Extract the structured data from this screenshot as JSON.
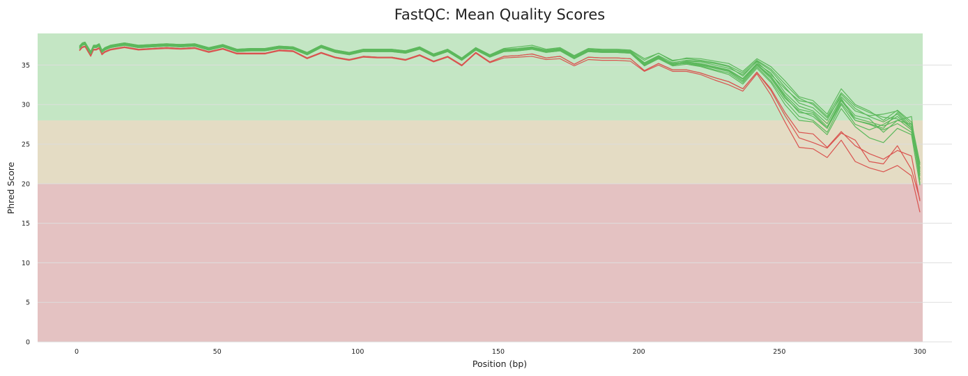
{
  "chart_data": {
    "type": "line",
    "title": "FastQC: Mean Quality Scores",
    "xlabel": "Position (bp)",
    "ylabel": "Phred Score",
    "xlim": [
      -15,
      300
    ],
    "ylim": [
      0,
      39
    ],
    "x_ticks": [
      "0",
      "50",
      "100",
      "150",
      "200",
      "250",
      "300"
    ],
    "y_ticks": [
      "0",
      "5",
      "10",
      "15",
      "20",
      "25",
      "30",
      "35"
    ],
    "grid": true,
    "legend": "none",
    "bands": [
      {
        "from": 28,
        "to": 39,
        "color": "#c4e6c4"
      },
      {
        "from": 20,
        "to": 28,
        "color": "#e4dcc4"
      },
      {
        "from": 0,
        "to": 20,
        "color": "#e4c2c2"
      }
    ],
    "x": [
      1,
      2,
      3,
      4,
      5,
      6,
      7,
      8,
      9,
      10,
      12,
      17,
      22,
      27,
      32,
      37,
      42,
      47,
      52,
      57,
      62,
      67,
      72,
      77,
      82,
      87,
      92,
      97,
      102,
      107,
      112,
      117,
      122,
      127,
      132,
      137,
      142,
      147,
      152,
      157,
      162,
      167,
      172,
      177,
      182,
      187,
      192,
      197,
      202,
      207,
      212,
      217,
      222,
      227,
      232,
      237,
      242,
      247,
      252,
      257,
      262,
      267,
      272,
      277,
      282,
      287,
      292,
      297,
      300
    ],
    "base": [
      37.2,
      37.6,
      37.7,
      37.1,
      36.5,
      37.3,
      37.3,
      37.5,
      36.7,
      37.0,
      37.3,
      37.6,
      37.3,
      37.4,
      37.5,
      37.4,
      37.5,
      37.0,
      37.4,
      36.8,
      36.9,
      36.9,
      37.2,
      37.1,
      36.4,
      37.3,
      36.7,
      36.4,
      36.8,
      36.8,
      36.8,
      36.6,
      37.1,
      36.2,
      36.8,
      35.7,
      37.0,
      36.1,
      36.8,
      36.9,
      37.1,
      36.7,
      36.9,
      35.9,
      36.8,
      36.7,
      36.7,
      36.6,
      35.1,
      36.0,
      35.0,
      35.3,
      35.0,
      34.6,
      34.2,
      33.0,
      35.0,
      33.5,
      31.0,
      29.0,
      28.8,
      27.0,
      30.5,
      28.3,
      27.8,
      27.3,
      28.0,
      27.5,
      21.5
    ],
    "series": [
      {
        "status": "pass",
        "values": [
          37.2,
          37.6,
          37.7,
          37.1,
          36.5,
          37.3,
          37.3,
          37.5,
          36.7,
          37.0,
          37.3,
          37.6,
          37.3,
          37.4,
          37.5,
          37.4,
          37.5,
          37.0,
          37.4,
          36.8,
          36.9,
          36.9,
          37.2,
          37.1,
          36.4,
          37.3,
          36.7,
          36.4,
          36.8,
          36.8,
          36.8,
          36.6,
          37.1,
          36.2,
          36.8,
          35.7,
          37.0,
          36.1,
          36.8,
          36.9,
          37.1,
          36.7,
          36.9,
          35.9,
          36.8,
          36.7,
          36.7,
          36.6,
          35.1,
          36.0,
          35.0,
          35.3,
          35.0,
          34.6,
          34.2,
          33.0,
          35.0,
          33.5,
          31.0,
          29.0,
          28.8,
          27.0,
          30.5,
          28.3,
          27.8,
          27.3,
          28.0,
          27.5,
          21.5
        ]
      },
      {
        "status": "pass",
        "values": [
          37.3,
          37.7,
          37.8,
          37.2,
          36.6,
          37.4,
          37.4,
          37.6,
          36.8,
          37.1,
          37.4,
          37.7,
          37.4,
          37.5,
          37.6,
          37.5,
          37.6,
          37.1,
          37.5,
          36.9,
          37.0,
          37.0,
          37.3,
          37.2,
          36.5,
          37.4,
          36.8,
          36.5,
          36.9,
          36.9,
          36.9,
          36.7,
          37.2,
          36.3,
          36.9,
          35.8,
          37.1,
          36.2,
          36.9,
          37.0,
          37.2,
          36.8,
          37.0,
          36.0,
          36.9,
          36.8,
          36.8,
          36.7,
          35.3,
          36.2,
          35.3,
          35.6,
          35.5,
          35.2,
          34.8,
          33.6,
          35.5,
          34.3,
          32.2,
          30.2,
          29.6,
          28.0,
          31.3,
          29.5,
          28.5,
          27.8,
          28.8,
          27.0,
          22.0
        ]
      },
      {
        "status": "pass",
        "values": [
          37.4,
          37.8,
          37.9,
          37.3,
          36.7,
          37.5,
          37.5,
          37.7,
          36.9,
          37.2,
          37.5,
          37.8,
          37.5,
          37.6,
          37.7,
          37.6,
          37.7,
          37.2,
          37.6,
          37.0,
          37.1,
          37.1,
          37.4,
          37.3,
          36.6,
          37.5,
          36.9,
          36.6,
          37.0,
          37.0,
          37.0,
          36.8,
          37.3,
          36.4,
          37.0,
          35.9,
          37.2,
          36.3,
          37.0,
          37.1,
          37.3,
          36.9,
          37.1,
          36.1,
          37.0,
          36.9,
          36.9,
          36.8,
          35.6,
          36.5,
          35.5,
          35.9,
          35.8,
          35.5,
          35.2,
          34.2,
          35.8,
          34.8,
          33.0,
          31.0,
          30.5,
          28.8,
          32.0,
          30.0,
          29.2,
          28.0,
          29.3,
          27.8,
          22.6
        ]
      },
      {
        "status": "pass",
        "values": [
          37.2,
          37.6,
          37.7,
          37.1,
          36.5,
          37.3,
          37.3,
          37.5,
          36.7,
          37.0,
          37.3,
          37.6,
          37.3,
          37.4,
          37.5,
          37.4,
          37.5,
          37.0,
          37.4,
          36.8,
          36.9,
          36.9,
          37.2,
          37.1,
          36.4,
          37.3,
          36.7,
          36.4,
          36.8,
          36.8,
          36.8,
          36.6,
          37.1,
          36.2,
          36.8,
          35.7,
          37.0,
          36.1,
          36.8,
          36.9,
          37.1,
          36.7,
          36.9,
          35.9,
          36.8,
          36.7,
          36.7,
          36.6,
          35.0,
          35.9,
          35.2,
          35.4,
          35.2,
          34.8,
          34.4,
          33.3,
          35.2,
          34.0,
          31.5,
          29.8,
          29.2,
          27.6,
          30.8,
          28.0,
          27.5,
          26.8,
          27.6,
          26.5,
          21.0
        ]
      },
      {
        "status": "pass",
        "values": [
          37.1,
          37.5,
          37.6,
          37.0,
          36.4,
          37.2,
          37.2,
          37.4,
          36.6,
          36.9,
          37.2,
          37.5,
          37.2,
          37.3,
          37.4,
          37.3,
          37.4,
          36.9,
          37.3,
          36.7,
          36.8,
          36.8,
          37.1,
          37.0,
          36.3,
          37.2,
          36.6,
          36.3,
          36.7,
          36.7,
          36.7,
          36.5,
          37.0,
          36.1,
          36.7,
          35.6,
          36.9,
          36.0,
          36.7,
          36.8,
          37.0,
          36.6,
          36.8,
          35.8,
          36.7,
          36.6,
          36.6,
          36.5,
          34.9,
          35.8,
          35.1,
          35.2,
          34.9,
          34.4,
          34.0,
          32.8,
          34.8,
          33.0,
          30.5,
          28.5,
          28.0,
          26.5,
          30.0,
          27.5,
          26.8,
          27.5,
          28.5,
          27.0,
          20.5
        ]
      },
      {
        "status": "pass",
        "values": [
          37.3,
          37.7,
          37.8,
          37.2,
          36.6,
          37.4,
          37.4,
          37.6,
          36.8,
          37.1,
          37.4,
          37.7,
          37.4,
          37.5,
          37.6,
          37.5,
          37.6,
          37.1,
          37.5,
          36.9,
          37.0,
          37.0,
          37.3,
          37.2,
          36.5,
          37.4,
          36.8,
          36.5,
          36.9,
          36.9,
          36.9,
          36.7,
          37.2,
          36.3,
          36.9,
          35.8,
          37.1,
          36.2,
          36.9,
          37.0,
          37.2,
          36.8,
          37.0,
          36.0,
          36.9,
          36.8,
          36.8,
          36.7,
          35.2,
          36.1,
          35.1,
          35.5,
          35.4,
          35.0,
          34.6,
          33.8,
          35.4,
          33.8,
          32.0,
          30.5,
          30.2,
          28.5,
          31.5,
          29.8,
          29.0,
          28.4,
          28.2,
          26.8,
          21.8
        ]
      },
      {
        "status": "pass",
        "values": [
          37.2,
          37.6,
          37.7,
          37.1,
          36.5,
          37.3,
          37.3,
          37.5,
          36.7,
          37.0,
          37.3,
          37.6,
          37.3,
          37.4,
          37.5,
          37.4,
          37.5,
          37.0,
          37.4,
          36.8,
          36.9,
          36.9,
          37.2,
          37.1,
          36.4,
          37.3,
          36.7,
          36.4,
          36.8,
          36.8,
          36.8,
          36.6,
          37.1,
          36.2,
          36.8,
          35.7,
          37.0,
          36.1,
          36.8,
          36.9,
          37.1,
          36.7,
          36.9,
          35.9,
          36.8,
          36.7,
          36.7,
          36.6,
          35.1,
          36.0,
          35.0,
          35.3,
          35.1,
          34.7,
          34.3,
          33.2,
          35.1,
          33.6,
          31.2,
          29.4,
          29.0,
          27.2,
          30.6,
          28.6,
          28.2,
          26.5,
          28.0,
          28.5,
          20.0
        ]
      },
      {
        "status": "pass",
        "values": [
          37.4,
          37.8,
          37.9,
          37.3,
          36.7,
          37.5,
          37.5,
          37.7,
          36.9,
          37.2,
          37.5,
          37.8,
          37.5,
          37.6,
          37.7,
          37.6,
          37.7,
          37.2,
          37.6,
          37.0,
          37.1,
          37.1,
          37.4,
          37.3,
          36.6,
          37.5,
          36.9,
          36.6,
          37.0,
          37.0,
          37.0,
          36.8,
          37.3,
          36.4,
          37.0,
          35.9,
          37.2,
          36.3,
          37.1,
          37.3,
          37.5,
          37.0,
          37.2,
          36.2,
          37.1,
          37.0,
          37.0,
          36.9,
          35.8,
          36.5,
          35.6,
          35.8,
          35.6,
          35.3,
          34.9,
          34.0,
          35.6,
          34.5,
          32.6,
          30.8,
          30.0,
          28.3,
          31.0,
          29.2,
          28.6,
          28.8,
          29.2,
          27.5,
          22.4
        ]
      },
      {
        "status": "pass",
        "values": [
          37.1,
          37.5,
          37.6,
          37.0,
          36.4,
          37.2,
          37.2,
          37.4,
          36.6,
          36.9,
          37.2,
          37.5,
          37.2,
          37.3,
          37.4,
          37.3,
          37.4,
          36.9,
          37.3,
          36.7,
          36.8,
          36.8,
          37.1,
          37.0,
          36.3,
          37.2,
          36.6,
          36.3,
          36.7,
          36.7,
          36.7,
          36.5,
          37.0,
          36.1,
          36.7,
          35.6,
          36.9,
          36.0,
          36.7,
          36.8,
          37.0,
          36.6,
          36.8,
          35.8,
          36.7,
          36.6,
          36.6,
          36.5,
          34.9,
          35.8,
          34.9,
          35.1,
          34.8,
          34.3,
          33.8,
          32.6,
          34.6,
          32.8,
          30.0,
          28.0,
          27.8,
          26.2,
          29.5,
          27.2,
          25.8,
          25.2,
          27.0,
          26.2,
          19.8
        ]
      },
      {
        "status": "pass",
        "values": [
          37.2,
          37.6,
          37.7,
          37.1,
          36.5,
          37.3,
          37.3,
          37.5,
          36.7,
          37.0,
          37.3,
          37.6,
          37.3,
          37.4,
          37.5,
          37.4,
          37.5,
          37.0,
          37.4,
          36.8,
          36.9,
          36.9,
          37.2,
          37.1,
          36.4,
          37.3,
          36.7,
          36.4,
          36.8,
          36.8,
          36.8,
          36.6,
          37.1,
          36.2,
          36.8,
          35.7,
          37.0,
          36.1,
          36.8,
          36.9,
          37.1,
          36.7,
          36.9,
          35.9,
          36.8,
          36.7,
          36.7,
          36.6,
          35.1,
          36.0,
          35.0,
          35.3,
          35.0,
          34.6,
          34.2,
          33.0,
          35.0,
          33.3,
          30.8,
          29.2,
          28.5,
          27.0,
          30.2,
          28.0,
          27.6,
          27.0,
          29.0,
          27.2,
          21.2
        ]
      },
      {
        "status": "fail",
        "values": [
          36.9,
          37.3,
          37.4,
          36.8,
          36.2,
          37.0,
          37.0,
          37.2,
          36.4,
          36.7,
          37.0,
          37.3,
          37.0,
          37.1,
          37.2,
          37.1,
          37.2,
          36.7,
          37.1,
          36.5,
          36.5,
          36.5,
          36.9,
          36.8,
          35.9,
          36.6,
          36.0,
          35.7,
          36.1,
          36.0,
          36.0,
          35.7,
          36.3,
          35.5,
          36.1,
          35.0,
          36.6,
          35.4,
          36.1,
          36.2,
          36.4,
          35.9,
          36.1,
          35.1,
          36.0,
          35.9,
          35.9,
          35.8,
          34.3,
          35.2,
          34.4,
          34.4,
          34.0,
          33.4,
          32.9,
          32.0,
          34.1,
          32.0,
          29.0,
          26.5,
          26.3,
          24.6,
          26.6,
          24.8,
          23.8,
          23.1,
          24.2,
          23.5,
          17.8
        ]
      },
      {
        "status": "fail",
        "values": [
          36.9,
          37.3,
          37.4,
          36.8,
          36.2,
          37.0,
          37.0,
          37.2,
          36.4,
          36.7,
          37.0,
          37.3,
          37.0,
          37.1,
          37.2,
          37.1,
          37.2,
          36.7,
          37.1,
          36.5,
          36.5,
          36.5,
          36.9,
          36.8,
          35.9,
          36.6,
          36.0,
          35.7,
          36.1,
          36.0,
          36.0,
          35.7,
          36.3,
          35.5,
          36.1,
          35.0,
          36.6,
          35.4,
          36.1,
          36.2,
          36.4,
          35.9,
          36.1,
          35.1,
          36.0,
          35.9,
          35.9,
          35.8,
          34.3,
          35.2,
          34.4,
          34.4,
          34.0,
          33.4,
          32.9,
          32.0,
          34.1,
          31.8,
          28.6,
          25.8,
          25.2,
          24.5,
          26.4,
          25.5,
          22.8,
          22.5,
          24.8,
          21.8,
          18.0
        ]
      },
      {
        "status": "fail",
        "values": [
          36.8,
          37.2,
          37.3,
          36.7,
          36.1,
          36.9,
          36.9,
          37.1,
          36.3,
          36.6,
          36.9,
          37.2,
          36.9,
          37.0,
          37.1,
          37.0,
          37.1,
          36.6,
          37.0,
          36.4,
          36.4,
          36.4,
          36.8,
          36.7,
          35.8,
          36.5,
          35.9,
          35.6,
          36.0,
          35.9,
          35.9,
          35.6,
          36.2,
          35.4,
          36.0,
          34.9,
          36.5,
          35.3,
          35.9,
          36.0,
          36.1,
          35.7,
          35.8,
          34.9,
          35.7,
          35.6,
          35.6,
          35.5,
          34.2,
          35.0,
          34.2,
          34.2,
          33.8,
          33.1,
          32.5,
          31.7,
          33.9,
          31.2,
          27.8,
          24.6,
          24.4,
          23.3,
          25.5,
          22.8,
          22.0,
          21.5,
          22.3,
          21.0,
          16.4
        ]
      }
    ],
    "colors": {
      "pass": "#5cb85c",
      "fail": "#d9534f",
      "grid": "#dddddd",
      "text": "#222222"
    }
  }
}
